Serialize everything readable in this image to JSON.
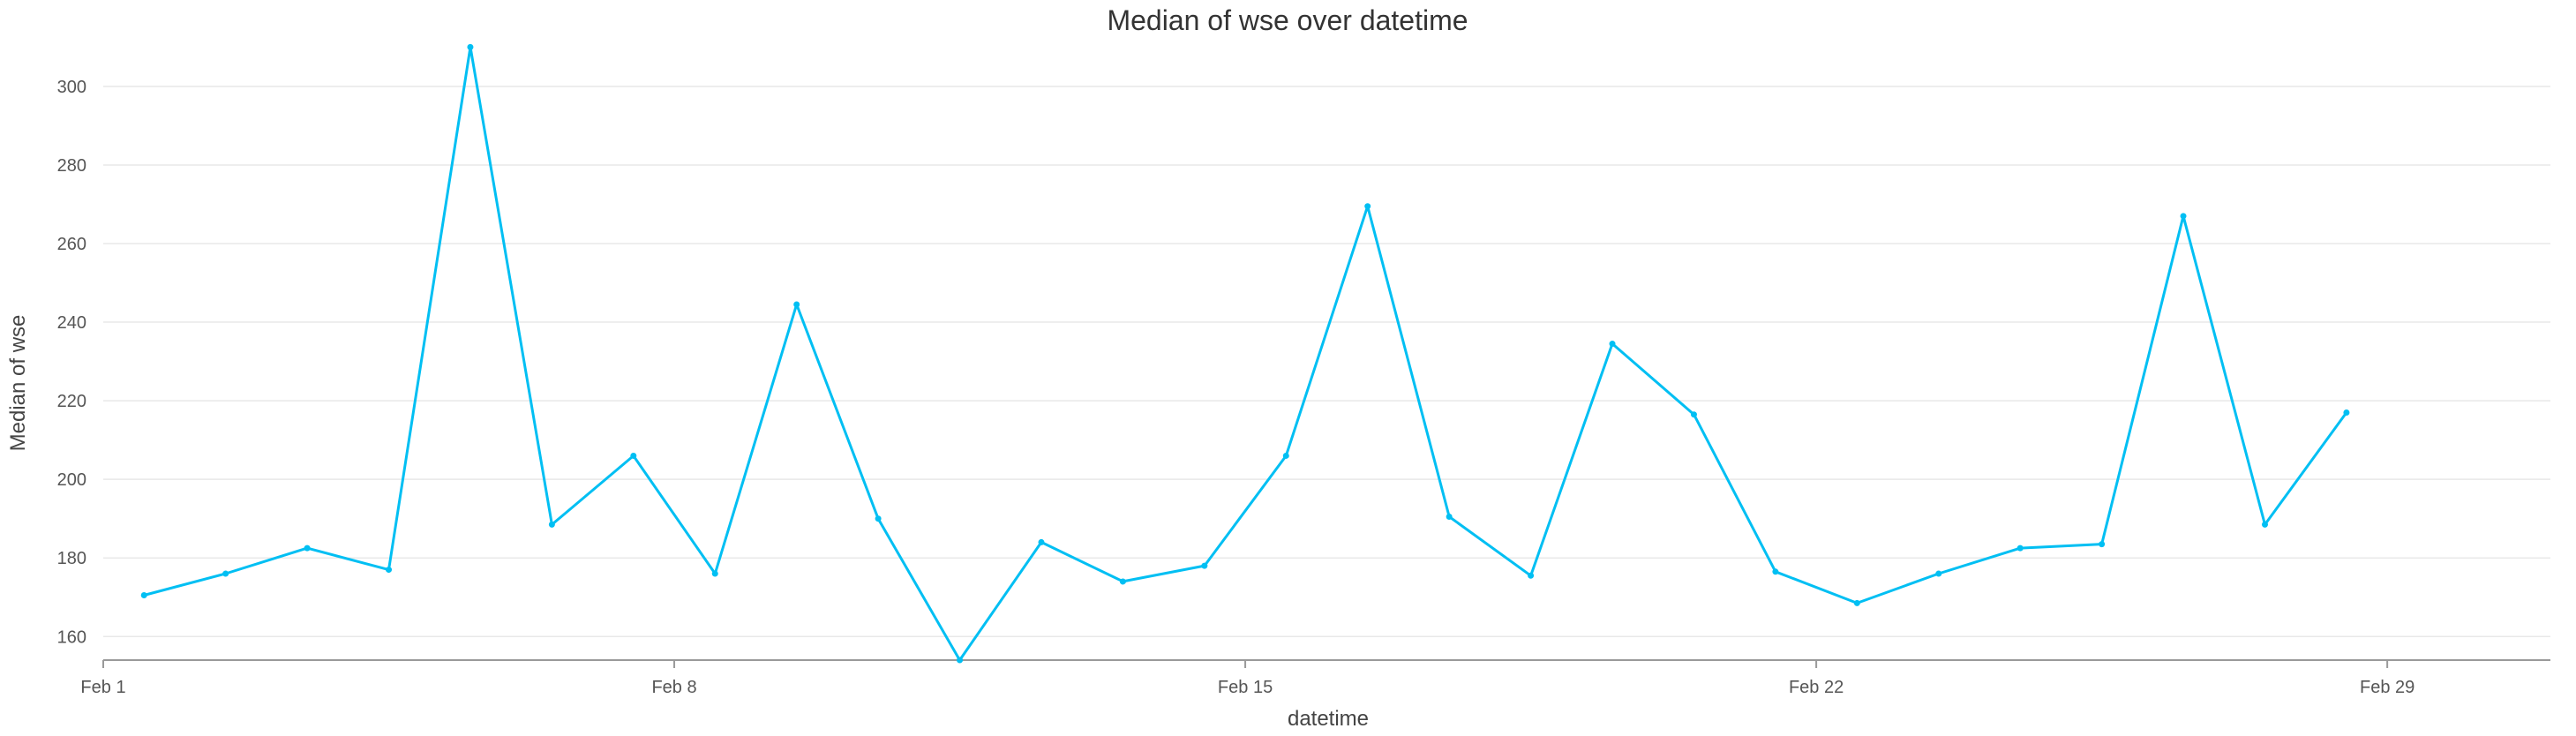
{
  "chart_data": {
    "type": "line",
    "title": "Median of wse over datetime",
    "xlabel": "datetime",
    "ylabel": "Median of wse",
    "x_ticks": [
      "Feb 1",
      "Feb 8",
      "Feb 15",
      "Feb 22",
      "Feb 29"
    ],
    "y_ticks": [
      160,
      180,
      200,
      220,
      240,
      260,
      280,
      300
    ],
    "xlim": [
      "2024-02-01",
      "2024-03-02"
    ],
    "ylim": [
      154,
      313
    ],
    "grid": true,
    "series": [
      {
        "color": "#00BFF3",
        "points": [
          {
            "x": "2024-02-01",
            "y": 170.5
          },
          {
            "x": "2024-02-02",
            "y": 176
          },
          {
            "x": "2024-02-03",
            "y": 182.5
          },
          {
            "x": "2024-02-04",
            "y": 177
          },
          {
            "x": "2024-02-05",
            "y": 310
          },
          {
            "x": "2024-02-06",
            "y": 188.5
          },
          {
            "x": "2024-02-07",
            "y": 206
          },
          {
            "x": "2024-02-08",
            "y": 176
          },
          {
            "x": "2024-02-09",
            "y": 244.5
          },
          {
            "x": "2024-02-10",
            "y": 190
          },
          {
            "x": "2024-02-11",
            "y": 154
          },
          {
            "x": "2024-02-12",
            "y": 184
          },
          {
            "x": "2024-02-13",
            "y": 174
          },
          {
            "x": "2024-02-14",
            "y": 178
          },
          {
            "x": "2024-02-15",
            "y": 206
          },
          {
            "x": "2024-02-16",
            "y": 269.5
          },
          {
            "x": "2024-02-17",
            "y": 190.5
          },
          {
            "x": "2024-02-18",
            "y": 175.5
          },
          {
            "x": "2024-02-19",
            "y": 234.5
          },
          {
            "x": "2024-02-20",
            "y": 216.5
          },
          {
            "x": "2024-02-21",
            "y": 176.5
          },
          {
            "x": "2024-02-22",
            "y": 168.5
          },
          {
            "x": "2024-02-23",
            "y": 176
          },
          {
            "x": "2024-02-24",
            "y": 182.5
          },
          {
            "x": "2024-02-25",
            "y": 183.5
          },
          {
            "x": "2024-02-26",
            "y": 267
          },
          {
            "x": "2024-02-27",
            "y": 188.5
          },
          {
            "x": "2024-02-28",
            "y": 217
          }
        ]
      }
    ]
  }
}
